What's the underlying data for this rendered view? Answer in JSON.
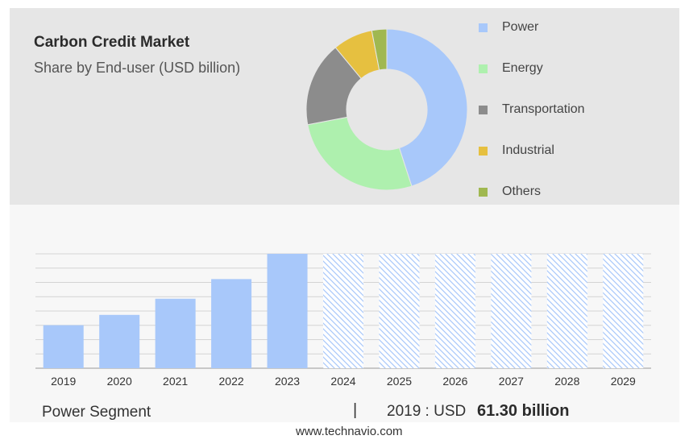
{
  "chart_data": [
    {
      "type": "pie",
      "title": "Carbon Credit Market",
      "subtitle": "Share by End-user (USD billion)",
      "categories": [
        "Power",
        "Energy",
        "Transportation",
        "Industrial",
        "Others"
      ],
      "values": [
        45,
        27,
        17,
        8,
        3
      ],
      "colors": [
        "#a8c8fa",
        "#aef0ae",
        "#8c8c8c",
        "#e6c040",
        "#a0b850"
      ],
      "legend": "right"
    },
    {
      "type": "bar",
      "categories": [
        "2019",
        "2020",
        "2021",
        "2022",
        "2023",
        "2024",
        "2025",
        "2026",
        "2027",
        "2028",
        "2029"
      ],
      "values": [
        61.3,
        76,
        99,
        127,
        163,
        163,
        163,
        163,
        163,
        163,
        163
      ],
      "forecast_from": "2024",
      "grid": true,
      "color": "#a8c8fa"
    }
  ],
  "footer": {
    "segment": "Power Segment",
    "separator": "|",
    "year_text": "2019 : USD",
    "value_text": "61.30 billion",
    "site": "www.technavio.com"
  }
}
